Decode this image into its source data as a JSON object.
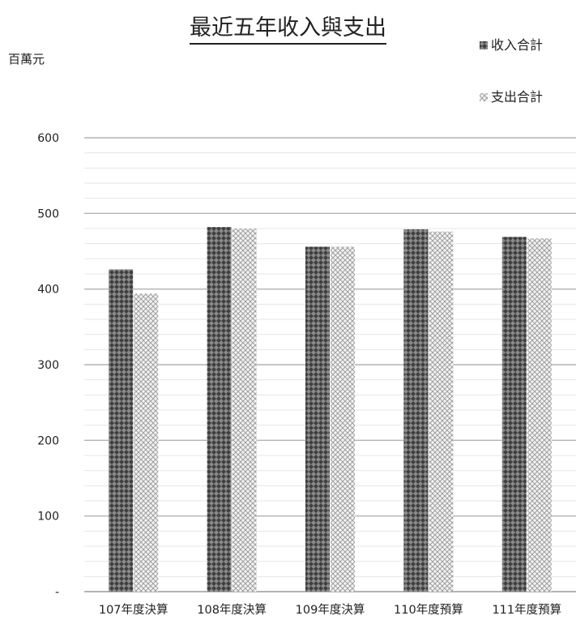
{
  "chart_data": {
    "type": "bar",
    "title": "最近五年收入與支出",
    "ylabel": "百萬元",
    "xlabel": "",
    "categories": [
      "107年度決算",
      "108年度決算",
      "109年度決算",
      "110年度預算",
      "111年度預算"
    ],
    "series": [
      {
        "name": "收入合計",
        "values": [
          426,
          482,
          456,
          479,
          469
        ],
        "color": "#555555",
        "pattern": "dark-diamond"
      },
      {
        "name": "支出合計",
        "values": [
          394,
          480,
          456,
          476,
          467
        ],
        "color": "#cccccc",
        "pattern": "light-diamond"
      }
    ],
    "ylim": [
      0,
      600
    ],
    "yticks": [
      0,
      100,
      200,
      300,
      400,
      500,
      600
    ],
    "ytick_labels": [
      "-",
      "100",
      "200",
      "300",
      "400",
      "500",
      "600"
    ],
    "minor_grid_step": 20,
    "grid": true,
    "legend_position": "top-right"
  }
}
